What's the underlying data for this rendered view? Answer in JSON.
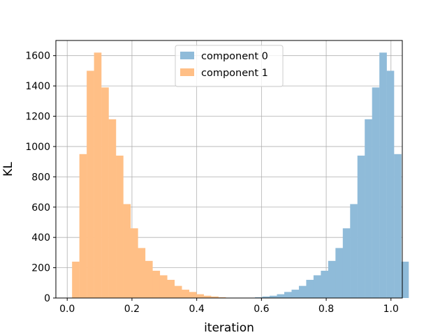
{
  "chart_data": {
    "type": "bar",
    "title": "",
    "xlabel": "iteration",
    "ylabel": "KL",
    "xlim": [
      -0.035,
      1.035
    ],
    "ylim": [
      0,
      1700
    ],
    "xticks": [
      0.0,
      0.2,
      0.4,
      0.6,
      0.8,
      1.0
    ],
    "xtick_labels": [
      "0.0",
      "0.2",
      "0.4",
      "0.6",
      "0.8",
      "1.0"
    ],
    "yticks": [
      0,
      200,
      400,
      600,
      800,
      1000,
      1200,
      1400,
      1600
    ],
    "ytick_labels": [
      "0",
      "200",
      "400",
      "600",
      "800",
      "1000",
      "1200",
      "1400",
      "1600"
    ],
    "grid": true,
    "legend_position": "top-center",
    "series": [
      {
        "name": "component 0",
        "color": "#8fbbd9",
        "bin_start": 0.015,
        "bin_width": 0.0226,
        "values": [
          0,
          0,
          0,
          0,
          0,
          0,
          0,
          0,
          0,
          0,
          0,
          0,
          0,
          0,
          0,
          0,
          0,
          0,
          0,
          0,
          0,
          0,
          0,
          0,
          0,
          5,
          10,
          15,
          25,
          40,
          55,
          80,
          120,
          150,
          180,
          245,
          330,
          460,
          620,
          940,
          1180,
          1390,
          1620,
          1500,
          950,
          240
        ]
      },
      {
        "name": "component 1",
        "color": "#ffbf86",
        "bin_start": 0.015,
        "bin_width": 0.0226,
        "values": [
          240,
          950,
          1500,
          1620,
          1390,
          1180,
          940,
          620,
          460,
          330,
          245,
          180,
          150,
          120,
          80,
          55,
          40,
          25,
          15,
          10,
          5,
          0,
          0,
          0,
          0,
          0,
          0,
          0,
          0,
          0,
          0,
          0,
          0,
          0,
          0,
          0,
          0,
          0,
          0,
          0,
          0,
          0,
          0,
          0,
          0,
          0
        ]
      }
    ]
  }
}
